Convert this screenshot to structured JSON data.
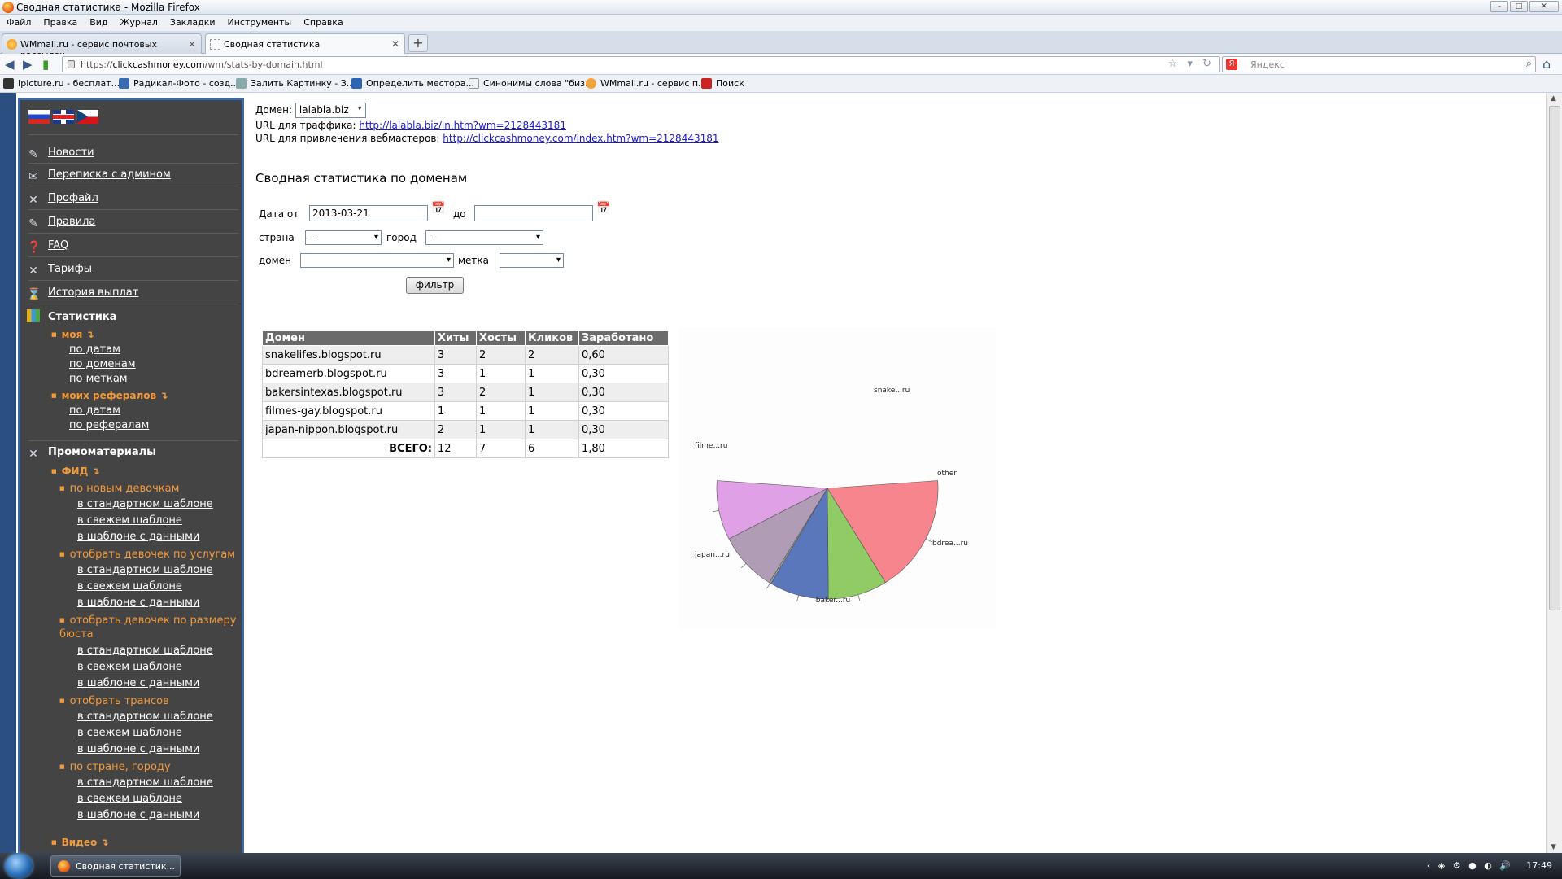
{
  "window": {
    "title": "Сводная статистика - Mozilla Firefox"
  },
  "menu": [
    "Файл",
    "Правка",
    "Вид",
    "Журнал",
    "Закладки",
    "Инструменты",
    "Справка"
  ],
  "tabs": [
    {
      "label": "WMmail.ru - сервис почтовых рассылок..."
    },
    {
      "label": "Сводная статистика"
    }
  ],
  "address": {
    "prefix": "https://",
    "domain": "clickcashmoney.com",
    "path": "/wm/stats-by-domain.html"
  },
  "search": {
    "placeholder": "Яндекс"
  },
  "bookmarks": [
    "Ipicture.ru - бесплат...",
    "Радикал-Фото - созд...",
    "Залить Картинку - З...",
    "Определить местора...",
    "Синонимы слова \"биз...",
    "WMmail.ru - сервис п...",
    "Поиск"
  ],
  "sidebar": {
    "items": [
      "Новости",
      "Переписка с админом",
      "Профайл",
      "Правила",
      "FAQ",
      "Тарифы",
      "История выплат"
    ],
    "stats": {
      "title": "Статистика",
      "mine": "моя ↴",
      "mine_links": [
        "по датам",
        "по доменам",
        "по меткам"
      ],
      "referrals": "моих рефералов ↴",
      "referral_links": [
        "по датам",
        "по рефералам"
      ]
    },
    "promo": {
      "title": "Промоматериалы",
      "feed": "ФИД ↴",
      "groups": [
        {
          "label": "по новым девочкам",
          "links": [
            "в стандартном шаблоне",
            "в свежем шаблоне",
            "в шаблоне с данными"
          ]
        },
        {
          "label": "отобрать девочек по услугам",
          "links": [
            "в стандартном шаблоне",
            "в свежем шаблоне",
            "в шаблоне с данными"
          ]
        },
        {
          "label": "отобрать девочек по размеру бюста",
          "links": [
            "в стандартном шаблоне",
            "в свежем шаблоне",
            "в шаблоне с данными"
          ]
        },
        {
          "label": "отобрать трансов",
          "links": [
            "в стандартном шаблоне",
            "в свежем шаблоне",
            "в шаблоне с данными"
          ]
        },
        {
          "label": "по стране, городу",
          "links": [
            "в стандартном шаблоне",
            "в свежем шаблоне",
            "в шаблоне с данными"
          ]
        }
      ],
      "video": "Видео ↴"
    }
  },
  "main": {
    "domain_label": "Домен:",
    "domain_value": "lalabla.biz",
    "traffic_label": "URL для траффика:",
    "traffic_url": "http://lalabla.biz/in.htm?wm=2128443181",
    "webmaster_label": "URL для привлечения вебмастеров:",
    "webmaster_url": "http://clickcashmoney.com/index.htm?wm=2128443181",
    "heading": "Сводная статистика по доменам",
    "filter": {
      "date_from_label": "Дата от",
      "date_from": "2013-03-21",
      "date_to_label": "до",
      "date_to": "",
      "country_label": "страна",
      "country": "--",
      "city_label": "город",
      "city": "--",
      "domain_label": "домен",
      "domain": "",
      "tag_label": "метка",
      "tag": "",
      "button": "фильтр"
    },
    "table": {
      "headers": [
        "Домен",
        "Хиты",
        "Хосты",
        "Кликов",
        "Заработано"
      ],
      "rows": [
        [
          "snakelifes.blogspot.ru",
          "3",
          "2",
          "2",
          "0,60"
        ],
        [
          "bdreamerb.blogspot.ru",
          "3",
          "1",
          "1",
          "0,30"
        ],
        [
          "bakersintexas.blogspot.ru",
          "3",
          "2",
          "1",
          "0,30"
        ],
        [
          "filmes-gay.blogspot.ru",
          "1",
          "1",
          "1",
          "0,30"
        ],
        [
          "japan-nippon.blogspot.ru",
          "2",
          "1",
          "1",
          "0,30"
        ]
      ],
      "total": [
        "ВСЕГО:",
        "12",
        "7",
        "6",
        "1,80"
      ]
    }
  },
  "chart_data": {
    "type": "pie",
    "slices": [
      {
        "label": "snake...ru",
        "value": 0.6,
        "color": "#f5707a"
      },
      {
        "label": "filme...ru",
        "value": 0.3,
        "color": "#7ec24a"
      },
      {
        "label": "bdrea...ru",
        "value": 0.3,
        "color": "#3d5fb0"
      },
      {
        "label": "other",
        "value": 0.01,
        "color": "#888888"
      },
      {
        "label": "baker...ru",
        "value": 0.3,
        "color": "#a28ba8"
      },
      {
        "label": "japan...ru",
        "value": 0.3,
        "color": "#d98fe0"
      }
    ]
  },
  "taskbar": {
    "item": "Сводная статистик...",
    "clock": "17:49"
  }
}
